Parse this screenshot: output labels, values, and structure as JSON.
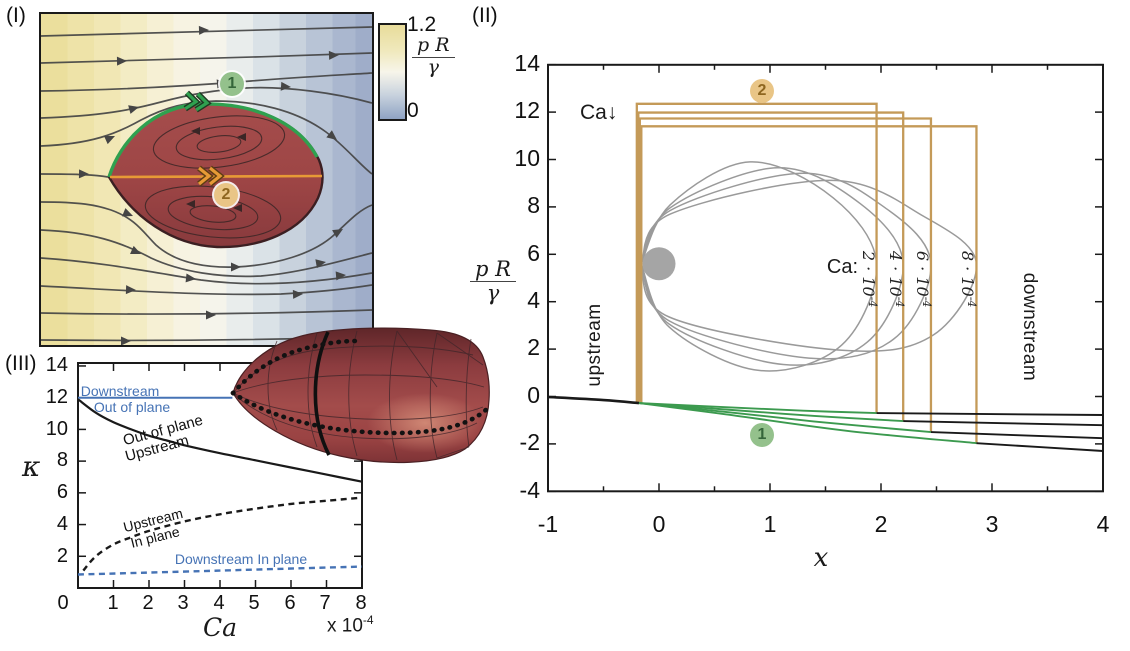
{
  "panels": {
    "p1": {
      "tag": "(I)",
      "colorbar_max": "1.2",
      "colorbar_min": "0",
      "frac_num": "p R",
      "frac_den": "γ",
      "badge1": "1",
      "badge2": "2"
    },
    "p2": {
      "tag": "(II)",
      "frac_num": "p R",
      "frac_den": "γ",
      "xlabel": "x",
      "yticks": [
        "14",
        "12",
        "10",
        "8",
        "6",
        "4",
        "2",
        "0",
        "-2",
        "-4"
      ],
      "xticks": [
        "-1",
        "0",
        "1",
        "2",
        "3",
        "4"
      ],
      "ca_arrow_text": "Ca",
      "ca_arrow_glyph": "↓",
      "ca_colon": "Ca:",
      "ca_vals": [
        {
          "base": "2 · 10",
          "exp": "-4"
        },
        {
          "base": "4 · 10",
          "exp": "-4"
        },
        {
          "base": "6 · 10",
          "exp": "-4"
        },
        {
          "base": "8 · 10",
          "exp": "-4"
        }
      ],
      "upstream": "upstream",
      "downstream": "downstream",
      "badge1": "1",
      "badge2": "2"
    },
    "p3": {
      "tag": "(III)",
      "ylabel": "κ",
      "xlabel": "Ca",
      "exp_base": "x 10",
      "exp_sup": "-4",
      "yticks": [
        "14",
        "12",
        "10",
        "8",
        "6",
        "4",
        "2"
      ],
      "xticks": [
        "0",
        "1",
        "2",
        "3",
        "4",
        "5",
        "6",
        "7",
        "8"
      ],
      "lbl_downstream_blue": "Downstream",
      "lbl_outofplane_blue": "Out of plane",
      "lbl_outofplane_black": "Out of plane",
      "lbl_upstream_black": "Upstream",
      "lbl_upstream_dashed": "Upstream",
      "lbl_inplane_dashed": "In plane",
      "lbl_downstream_inplane": "Downstream In plane"
    },
    "colors": {
      "tan": "#c49a58",
      "green": "#3c9a4f",
      "blue": "#4673b5",
      "black": "#1a1a1a",
      "gray_outline": "#9a9a9a",
      "sphere_gray": "#a5a5a5",
      "droplet_red": "#9d4545",
      "p1_green": "#2fa14f",
      "p1_orange": "#e79a36"
    }
  },
  "chart_data": [
    {
      "id": "I",
      "type": "heatmap",
      "description": "Pressure field p R / γ with streamlines around a 2D droplet; path 1 (green) along interface, path 2 (orange) along centerline",
      "colorbar": {
        "min": 0,
        "max": 1.2,
        "label": "p R / γ"
      },
      "annotations": [
        "1",
        "2"
      ]
    },
    {
      "id": "II",
      "type": "line",
      "xlabel": "x",
      "ylabel": "p R / γ",
      "xlim": [
        -1,
        4
      ],
      "ylim": [
        -4,
        14
      ],
      "xticks": [
        -1,
        0,
        1,
        2,
        3,
        4
      ],
      "yticks": [
        14,
        12,
        10,
        8,
        6,
        4,
        2,
        0,
        -2,
        -4
      ],
      "upstream_exterior": [
        [
          -1,
          -0.02
        ],
        [
          -0.5,
          -0.15
        ],
        [
          -0.18,
          -0.28
        ]
      ],
      "interior_steps": [
        {
          "ca": "2e-4",
          "x_rise": -0.18,
          "y_start": -0.28,
          "plateau": 12.35,
          "x_drop": 1.96,
          "y_end": -0.7
        },
        {
          "ca": "4e-4",
          "x_rise": -0.18,
          "y_start": -0.28,
          "plateau": 11.98,
          "x_drop": 2.2,
          "y_end": -1.04
        },
        {
          "ca": "6e-4",
          "x_rise": -0.18,
          "y_start": -0.28,
          "plateau": 11.73,
          "x_drop": 2.45,
          "y_end": -1.5
        },
        {
          "ca": "8e-4",
          "x_rise": -0.18,
          "y_start": -0.28,
          "plateau": 11.4,
          "x_drop": 2.86,
          "y_end": -1.97
        }
      ],
      "interface_green": [
        [
          [
            -0.18,
            -0.28
          ],
          [
            0.6,
            -0.45
          ],
          [
            1.3,
            -0.6
          ],
          [
            1.96,
            -0.7
          ]
        ],
        [
          [
            -0.18,
            -0.28
          ],
          [
            0.6,
            -0.55
          ],
          [
            1.4,
            -0.82
          ],
          [
            2.2,
            -1.04
          ]
        ],
        [
          [
            -0.18,
            -0.28
          ],
          [
            0.6,
            -0.65
          ],
          [
            1.5,
            -1.1
          ],
          [
            2.45,
            -1.5
          ]
        ],
        [
          [
            -0.18,
            -0.28
          ],
          [
            0.6,
            -0.75
          ],
          [
            1.7,
            -1.45
          ],
          [
            2.86,
            -1.97
          ]
        ]
      ],
      "downstream_exterior": [
        [
          [
            1.96,
            -0.7
          ],
          [
            4,
            -0.78
          ]
        ],
        [
          [
            2.2,
            -1.04
          ],
          [
            4,
            -1.21
          ]
        ],
        [
          [
            2.45,
            -1.5
          ],
          [
            4,
            -1.76
          ]
        ],
        [
          [
            2.86,
            -1.97
          ],
          [
            4,
            -2.3
          ]
        ]
      ],
      "drop_outlines": [
        {
          "x_end": 1.96,
          "peak": [
            0.82,
            9.9
          ],
          "dip": [
            0.9,
            1.1
          ]
        },
        {
          "x_end": 2.2,
          "peak": [
            1.07,
            9.65
          ],
          "dip": [
            1.12,
            1.35
          ]
        },
        {
          "x_end": 2.45,
          "peak": [
            1.3,
            9.42
          ],
          "dip": [
            1.35,
            1.62
          ]
        },
        {
          "x_end": 2.86,
          "peak": [
            1.55,
            9.12
          ],
          "dip": [
            1.65,
            1.95
          ]
        }
      ],
      "sphere_marker": {
        "x": 0,
        "y": 5.6
      }
    },
    {
      "id": "III",
      "type": "line",
      "xlabel": "Ca (x 10^-4)",
      "ylabel": "κ",
      "xlim": [
        0,
        8
      ],
      "ylim": [
        0,
        14
      ],
      "xticks": [
        0,
        1,
        2,
        3,
        4,
        5,
        6,
        7,
        8
      ],
      "yticks": [
        2,
        4,
        6,
        8,
        10,
        12,
        14
      ],
      "series": [
        {
          "name": "Downstream Out of plane",
          "style": "solid",
          "color": "#4673b5",
          "points": [
            [
              0,
              12.0
            ],
            [
              4.35,
              12.0
            ]
          ]
        },
        {
          "name": "Upstream Out of plane",
          "style": "solid",
          "color": "#1a1a1a",
          "points": [
            [
              0,
              11.9
            ],
            [
              0.5,
              11.05
            ],
            [
              1,
              10.45
            ],
            [
              1.5,
              10.0
            ],
            [
              2,
              9.6
            ],
            [
              2.5,
              9.3
            ],
            [
              3,
              9.0
            ],
            [
              4,
              8.5
            ],
            [
              5,
              8.05
            ],
            [
              6,
              7.6
            ],
            [
              7,
              7.15
            ],
            [
              8,
              6.7
            ]
          ]
        },
        {
          "name": "Upstream In plane",
          "style": "dashed",
          "color": "#1a1a1a",
          "points": [
            [
              0.15,
              1.1
            ],
            [
              0.5,
              2.0
            ],
            [
              1,
              2.75
            ],
            [
              1.5,
              3.2
            ],
            [
              2,
              3.6
            ],
            [
              3,
              4.2
            ],
            [
              4,
              4.65
            ],
            [
              5,
              5.0
            ],
            [
              6,
              5.3
            ],
            [
              7,
              5.5
            ],
            [
              8,
              5.7
            ]
          ]
        },
        {
          "name": "Downstream In plane",
          "style": "dashed",
          "color": "#4673b5",
          "points": [
            [
              0,
              0.85
            ],
            [
              4,
              1.1
            ],
            [
              8,
              1.35
            ]
          ]
        }
      ]
    }
  ]
}
